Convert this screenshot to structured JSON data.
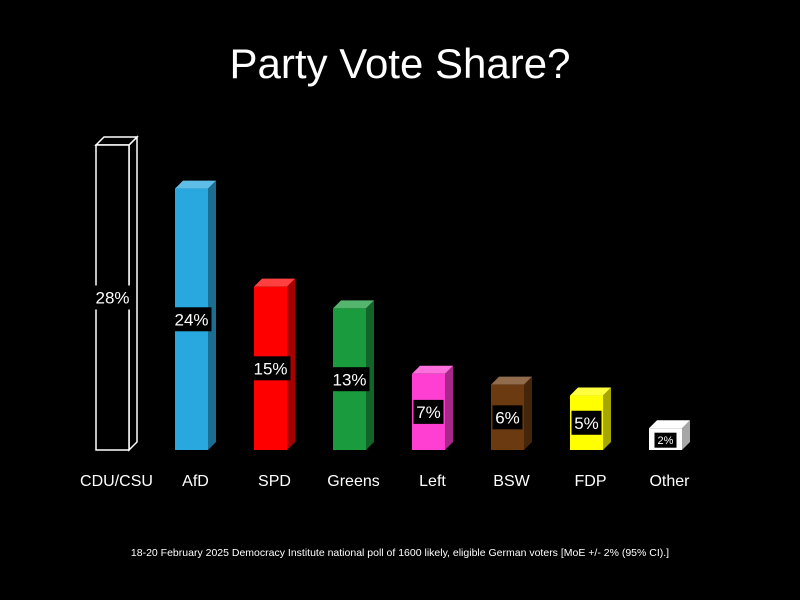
{
  "chart_data": {
    "type": "bar",
    "title": "Party Vote Share?",
    "categories": [
      "CDU/CSU",
      "AfD",
      "SPD",
      "Greens",
      "Left",
      "BSW",
      "FDP",
      "Other"
    ],
    "values": [
      28,
      24,
      15,
      13,
      7,
      6,
      5,
      2
    ],
    "value_labels": [
      "28%",
      "24%",
      "15%",
      "13%",
      "7%",
      "6%",
      "5%",
      "2%"
    ],
    "colors": [
      "#000000",
      "#29a8e0",
      "#ff0000",
      "#1a9c3e",
      "#ff3fd2",
      "#6b3a10",
      "#ffff00",
      "#ffffff"
    ],
    "xlabel": "",
    "ylabel": "",
    "ylim": [
      0,
      28
    ],
    "grid": false,
    "style": "3d-bar",
    "footnote": "18-20 February 2025 Democracy Institute national poll of 1600 likely, eligible German voters [MoE +/- 2% (95% CI).]"
  }
}
